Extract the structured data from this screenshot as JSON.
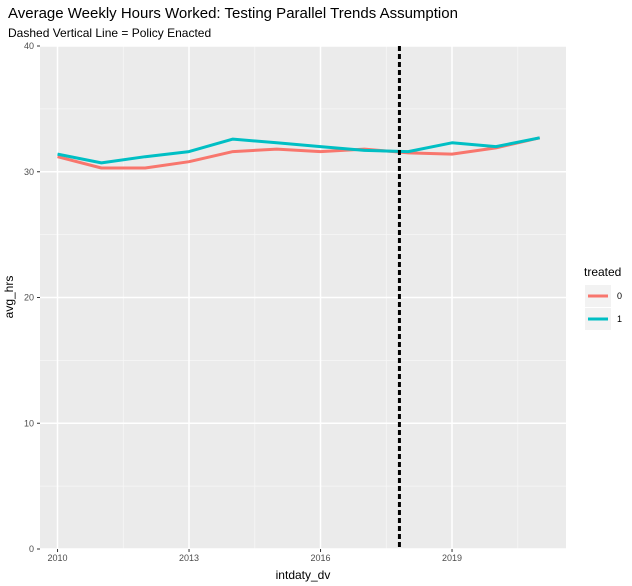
{
  "chart_data": {
    "type": "line",
    "title": "Average Weekly Hours Worked: Testing Parallel Trends Assumption",
    "subtitle": "Dashed Vertical Line = Policy Enacted",
    "xlabel": "intdaty_dv",
    "ylabel": "avg_hrs",
    "xlim": [
      2009.6,
      2021.6
    ],
    "ylim": [
      0,
      40
    ],
    "x_ticks": [
      2010,
      2013,
      2016,
      2019
    ],
    "y_ticks": [
      0,
      10,
      20,
      30,
      40
    ],
    "grid": true,
    "legend": {
      "title": "treated",
      "placement": "right"
    },
    "vline": {
      "x": 2017.8,
      "style": "dashed",
      "color": "#000000"
    },
    "x": [
      2010,
      2011,
      2012,
      2013,
      2014,
      2015,
      2016,
      2017,
      2018,
      2019,
      2020,
      2021
    ],
    "series": [
      {
        "name": "0",
        "color": "#F8766D",
        "values": [
          31.2,
          30.3,
          30.3,
          30.8,
          31.6,
          31.8,
          31.6,
          31.8,
          31.5,
          31.4,
          31.9,
          32.7
        ]
      },
      {
        "name": "1",
        "color": "#00BFC4",
        "values": [
          31.4,
          30.7,
          31.2,
          31.6,
          32.6,
          32.3,
          32.0,
          31.7,
          31.6,
          32.3,
          32.0,
          32.7
        ]
      }
    ]
  }
}
